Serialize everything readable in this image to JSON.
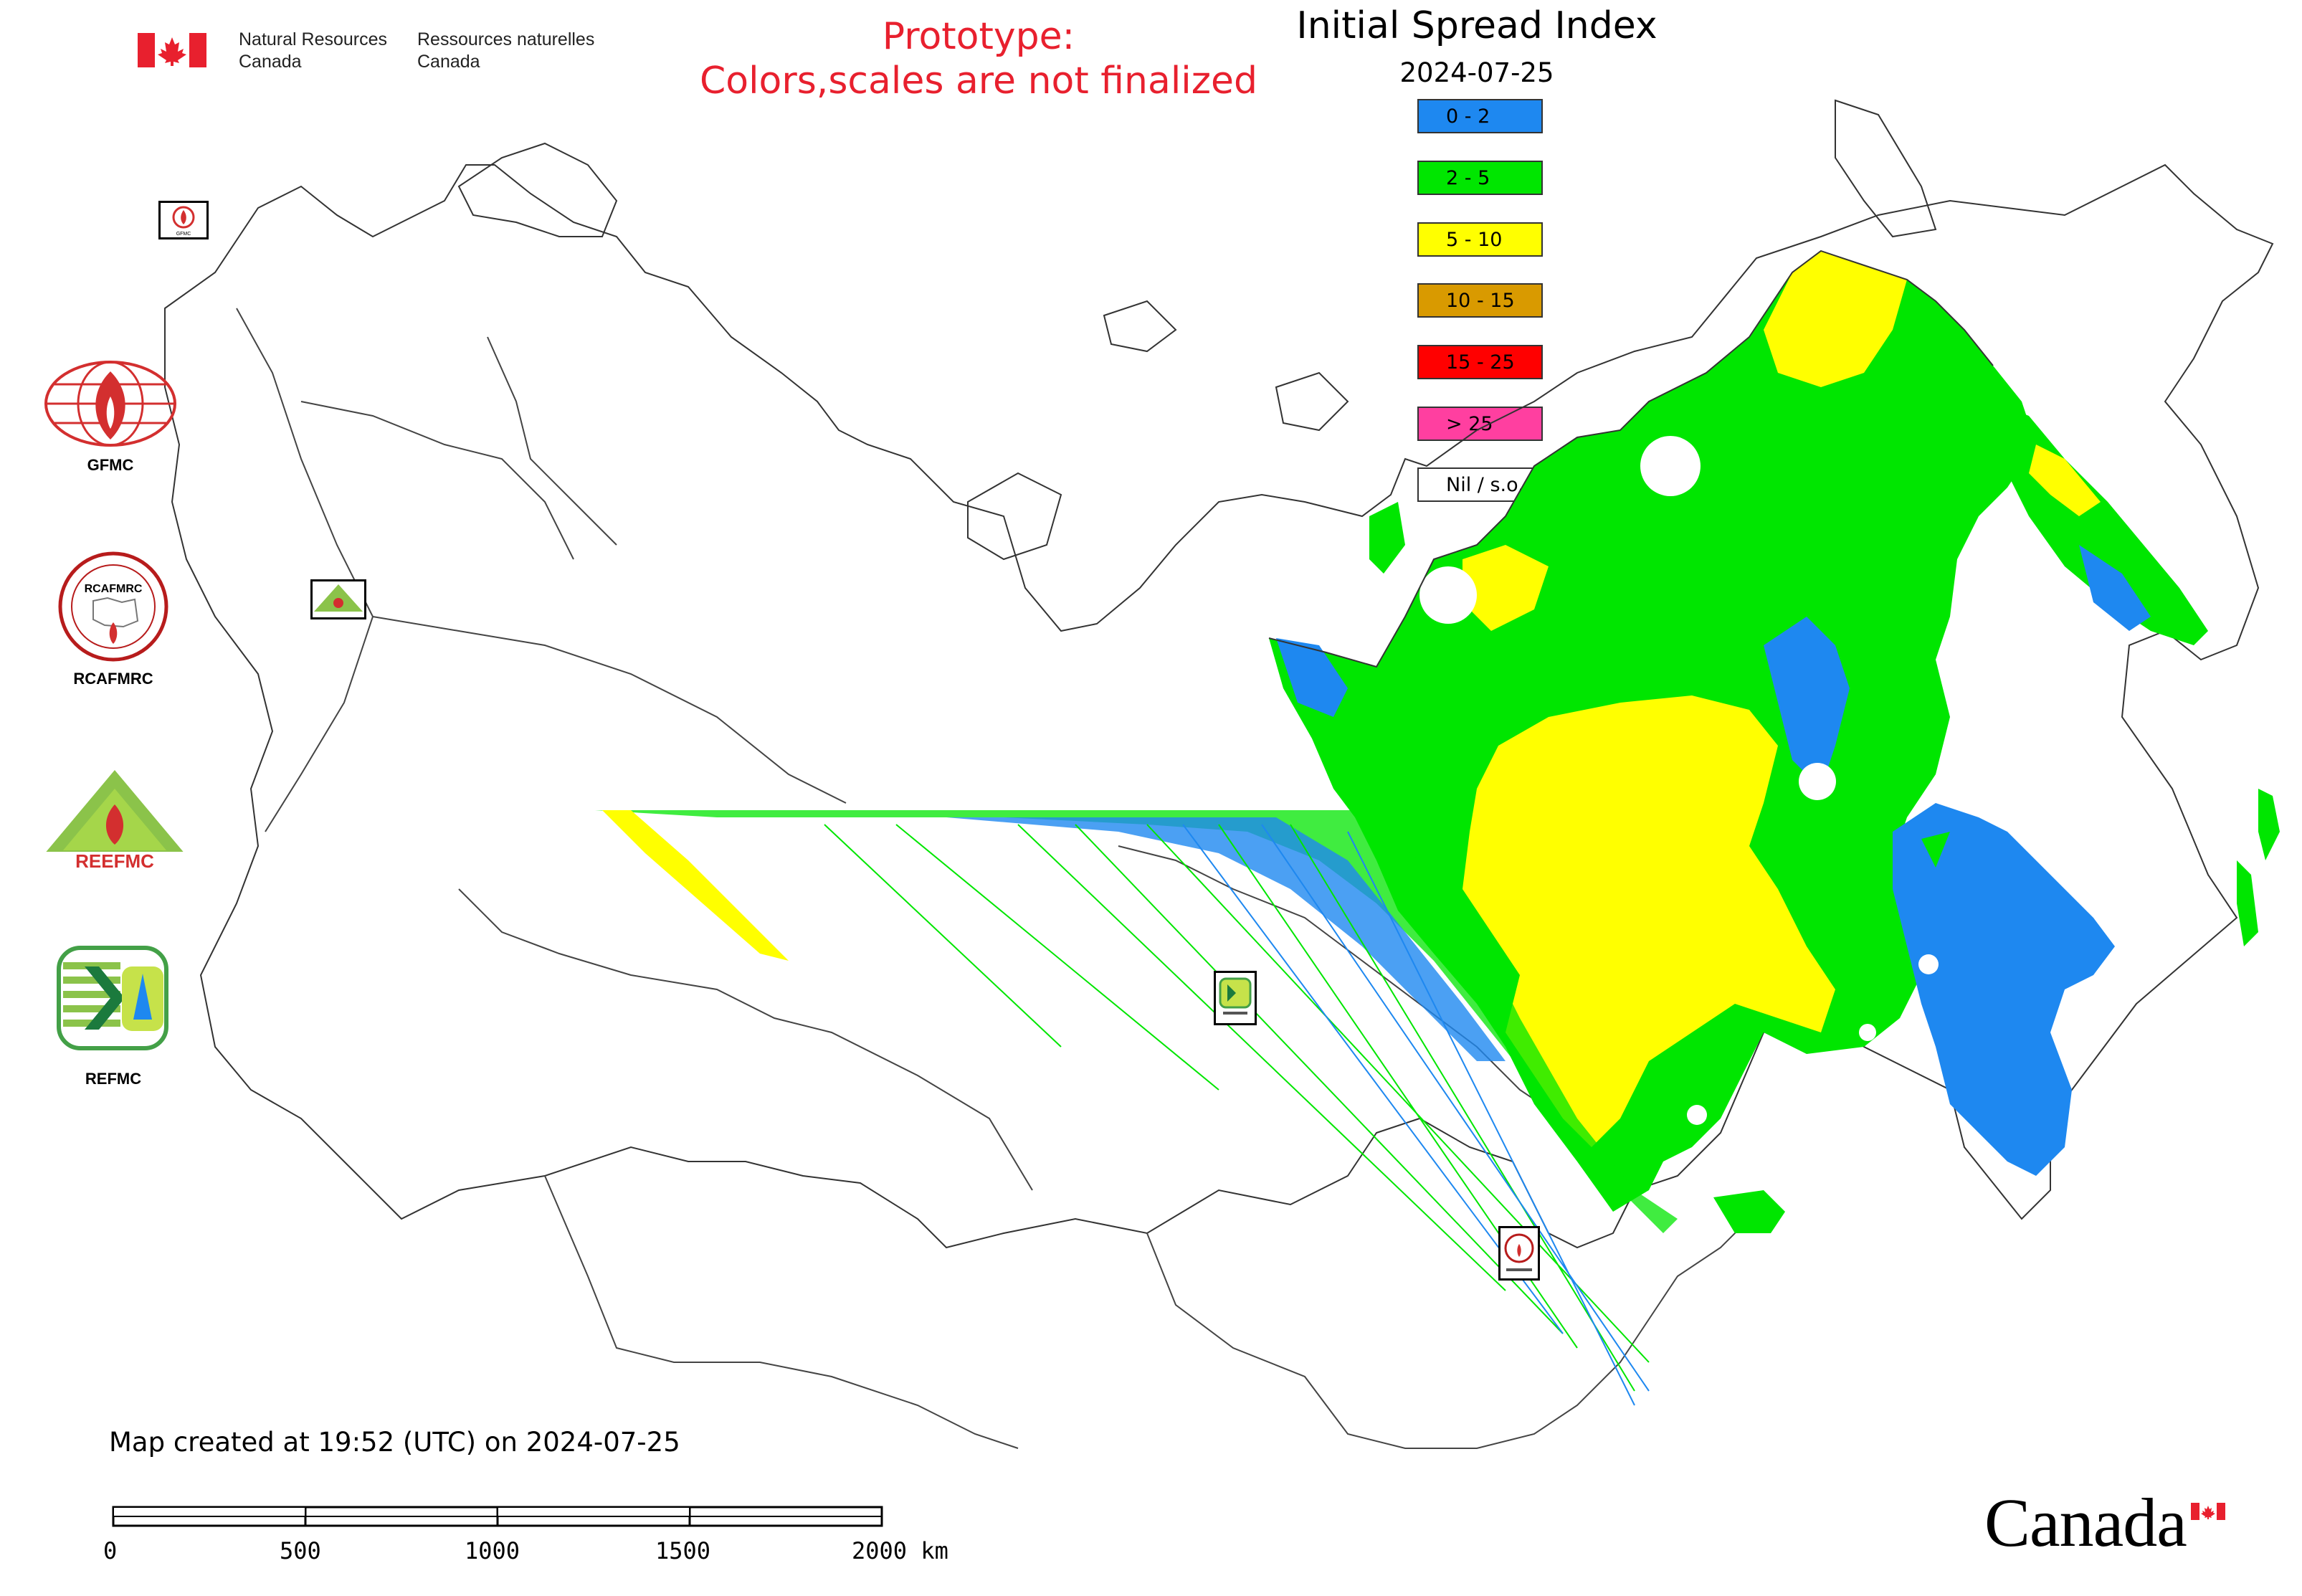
{
  "header": {
    "gov_en_line1": "Natural Resources",
    "gov_en_line2": "Canada",
    "gov_fr_line1": "Ressources naturelles",
    "gov_fr_line2": "Canada",
    "prototype_line1": "Prototype:",
    "prototype_line2": "Colors,scales are not finalized"
  },
  "map": {
    "title": "Initial Spread Index",
    "date": "2024-07-25"
  },
  "legend": [
    {
      "label": "0 - 2",
      "color": "#1e88f0"
    },
    {
      "label": "2 - 5",
      "color": "#00e600"
    },
    {
      "label": "5 - 10",
      "color": "#ffff00"
    },
    {
      "label": "10 - 15",
      "color": "#d99a00"
    },
    {
      "label": "15 - 25",
      "color": "#ff0000"
    },
    {
      "label": "> 25",
      "color": "#ff3fa0"
    },
    {
      "label": "Nil / s.o.",
      "color": "#ffffff"
    }
  ],
  "logos": {
    "gfmc": "GFMC",
    "rcafmrc": "RCAFMRC",
    "reefmc_banner": "REEFMC",
    "refmc": "REFMC"
  },
  "footer": {
    "created_text": "Map created at 19:52 (UTC) on 2024-07-25",
    "scale_labels": [
      "0",
      "500",
      "1000",
      "1500",
      "2000 km"
    ],
    "wordmark": "Canada"
  }
}
